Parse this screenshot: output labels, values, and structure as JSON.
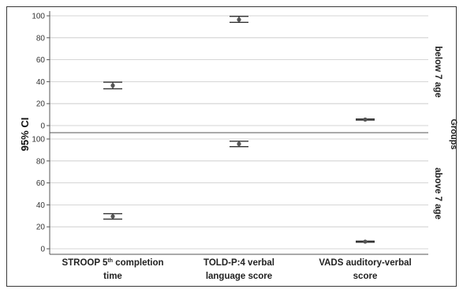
{
  "chart_data": {
    "type": "scatter",
    "ylabel": "95% CI",
    "facet_label": "Groups",
    "categories": [
      "STROOP 5th completion time",
      "TOLD-P:4 verbal language score",
      "VADS auditory-verbal score"
    ],
    "category_text": [
      {
        "line1_main": "STROOP 5",
        "line1_sup": "th",
        "line1_rest": " completion",
        "line2": "time"
      },
      {
        "line1_main": "TOLD-P:4 verbal",
        "line1_sup": "",
        "line1_rest": "",
        "line2": "language score"
      },
      {
        "line1_main": "VADS auditory-verbal",
        "line1_sup": "",
        "line1_rest": "",
        "line2": "score"
      }
    ],
    "ylim": [
      0,
      100
    ],
    "yticks": [
      0,
      20,
      40,
      60,
      80,
      100
    ],
    "grid": true,
    "panels": [
      {
        "name": "below 7 age",
        "mean": [
          36.5,
          96.5,
          5.5
        ],
        "lower": [
          33.5,
          94.0,
          5.0
        ],
        "upper": [
          39.5,
          99.5,
          6.0
        ]
      },
      {
        "name": "above 7 age",
        "mean": [
          29.5,
          95.5,
          6.5
        ],
        "lower": [
          27.0,
          93.0,
          6.0
        ],
        "upper": [
          32.0,
          98.0,
          7.0
        ]
      }
    ],
    "colors": {
      "marker": "#555555",
      "error_bar": "#333333",
      "grid": "#c8c8c8"
    }
  }
}
